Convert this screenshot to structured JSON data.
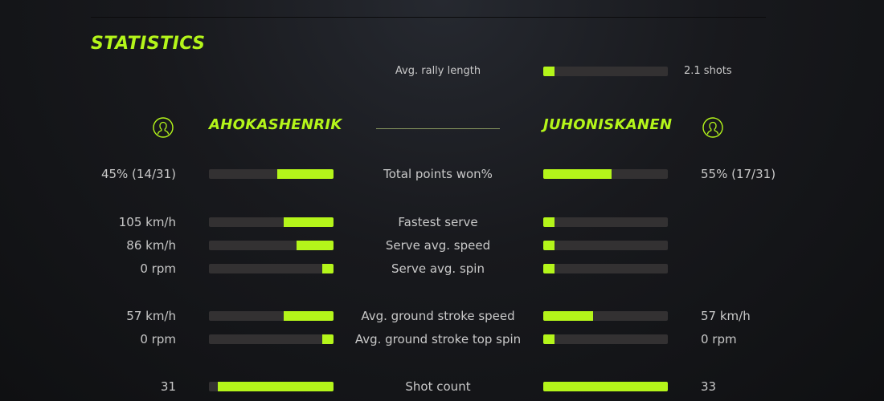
{
  "title": "STATISTICS",
  "accent_color": "#b4f51a",
  "rally": {
    "label": "Avg. rally length",
    "value": "2.1 shots",
    "fill": 0.09
  },
  "players": {
    "left": {
      "name": "AHOKASHENRIK",
      "icon": "user-avatar-icon"
    },
    "right": {
      "name": "JUHONISKANEN",
      "icon": "user-avatar-icon"
    }
  },
  "stats": [
    {
      "label": "Total points won%",
      "left": "45% (14/31)",
      "right": "55% (17/31)",
      "left_fill": 0.45,
      "right_fill": 0.55
    },
    {
      "label": "Fastest serve",
      "left": "105 km/h",
      "right": "",
      "left_fill": 0.4,
      "right_fill": 0.09
    },
    {
      "label": "Serve avg. speed",
      "left": "86 km/h",
      "right": "",
      "left_fill": 0.3,
      "right_fill": 0.09
    },
    {
      "label": "Serve avg. spin",
      "left": "0 rpm",
      "right": "",
      "left_fill": 0.09,
      "right_fill": 0.09
    },
    {
      "label": "Avg. ground stroke speed",
      "left": "57 km/h",
      "right": "57 km/h",
      "left_fill": 0.4,
      "right_fill": 0.4
    },
    {
      "label": "Avg. ground stroke top spin",
      "left": "0 rpm",
      "right": "0 rpm",
      "left_fill": 0.09,
      "right_fill": 0.09
    },
    {
      "label": "Shot count",
      "left": "31",
      "right": "33",
      "left_fill": 0.93,
      "right_fill": 1.0
    }
  ]
}
